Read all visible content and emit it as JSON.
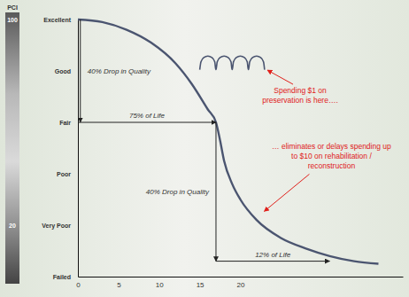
{
  "chart_data": {
    "type": "line",
    "xlim": [
      0,
      40
    ],
    "xticks": [
      0,
      5,
      10,
      15,
      20
    ],
    "ylim": [
      0,
      100
    ],
    "yticks": [
      {
        "value": 100,
        "label": "Excellent"
      },
      {
        "value": 80,
        "label": "Good"
      },
      {
        "value": 60,
        "label": "Fair"
      },
      {
        "value": 40,
        "label": "Poor"
      },
      {
        "value": 20,
        "label": "Very Poor"
      },
      {
        "value": 0,
        "label": "Failed"
      }
    ],
    "series": [
      {
        "color": "#4b5570",
        "x": [
          0,
          3,
          6,
          9,
          12,
          14,
          16,
          17,
          17.5,
          18,
          19,
          20,
          22,
          25,
          28,
          31,
          34,
          37
        ],
        "values": [
          100,
          99,
          96,
          91,
          83,
          75,
          65,
          60,
          53,
          45,
          36,
          30,
          22,
          15,
          11,
          8,
          6,
          5
        ]
      },
      {
        "color": "#4b5570",
        "x": [
          15,
          15.15,
          15.5,
          16,
          16.5,
          16.85,
          16.98,
          17,
          17.15,
          17.5,
          18,
          18.5,
          18.85,
          18.98,
          19,
          19.15,
          19.5,
          20,
          20.5,
          20.85,
          20.98,
          21,
          21.15,
          21.5,
          22,
          22.5,
          22.85,
          22.98
        ],
        "values": [
          80.5,
          83.5,
          85.2,
          85.8,
          85.2,
          83.5,
          80.5,
          80.5,
          83.5,
          85.2,
          85.8,
          85.2,
          83.5,
          80.5,
          80.5,
          83.5,
          85.2,
          85.8,
          85.2,
          83.5,
          80.5,
          80.5,
          83.5,
          85.2,
          85.8,
          85.2,
          83.5,
          80.5
        ]
      }
    ],
    "arrows": [
      {
        "label": "40% Drop in Quality",
        "x": [
          0.3,
          0.3
        ],
        "y": [
          100,
          60
        ]
      },
      {
        "label": "75% of Life",
        "x": [
          0,
          17
        ],
        "y": [
          60,
          60
        ]
      },
      {
        "label": "40% Drop in Quality",
        "x": [
          17,
          17
        ],
        "y": [
          60,
          6
        ]
      },
      {
        "label": "12% of Life",
        "x": [
          17,
          31
        ],
        "y": [
          6,
          6
        ]
      }
    ],
    "callouts": [
      {
        "lines": [
          "Spending $1 on",
          "preservation is here…."
        ],
        "color": "#e0201b",
        "x": 23,
        "y": 81
      },
      {
        "lines": [
          "… eliminates or delays spending up",
          "to $10 on rehabilitation /",
          "reconstruction"
        ],
        "color": "#e0201b",
        "x": 22.5,
        "y": 24
      }
    ],
    "pci_scale": {
      "title": "PCI",
      "ticks": [
        100,
        20
      ]
    }
  }
}
